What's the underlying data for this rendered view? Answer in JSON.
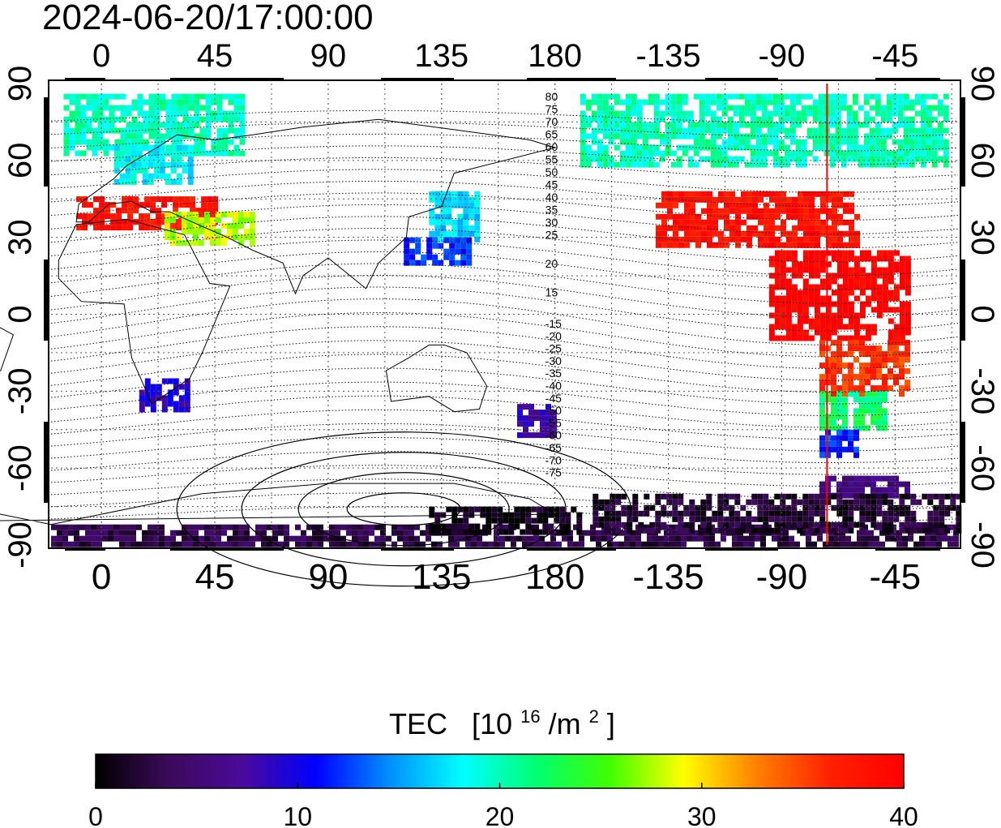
{
  "timestamp": "2024-06-20/17:00:00",
  "axes": {
    "lon_labels_top": [
      "0",
      "45",
      "90",
      "135",
      "180",
      "-135",
      "-90",
      "-45"
    ],
    "lon_labels_bottom": [
      "0",
      "45",
      "90",
      "135",
      "180",
      "-135",
      "-90",
      "-45"
    ],
    "lat_labels": [
      "90",
      "60",
      "30",
      "0",
      "-30",
      "-60",
      "-90"
    ],
    "lon_range": [
      -20,
      340
    ],
    "lat_range": [
      -90,
      90
    ],
    "grid": true,
    "lon_tick_values": [
      0,
      45,
      90,
      135,
      180,
      225,
      270,
      315
    ],
    "lat_tick_values": [
      90,
      60,
      30,
      0,
      -30,
      -60,
      -90
    ]
  },
  "contour_labels_north": [
    "80",
    "75",
    "70",
    "65",
    "60",
    "55",
    "50",
    "45",
    "40",
    "35",
    "30",
    "25",
    "20",
    "15"
  ],
  "contour_labels_south": [
    "-15",
    "-20",
    "-25",
    "-30",
    "-35",
    "-40",
    "-45",
    "-50",
    "-55",
    "-60",
    "-65",
    "-70",
    "-75"
  ],
  "marker_line": {
    "lon": 288,
    "color": "#ff0000"
  },
  "colorbar": {
    "title": "TEC",
    "unit_base": "[10",
    "unit_exp": "16",
    "unit_mid": "/m",
    "unit_exp2": "2",
    "unit_end": "]",
    "tick_labels": [
      "0",
      "10",
      "20",
      "30",
      "40"
    ],
    "min": 0,
    "max": 40,
    "stops": [
      "#000000",
      "#3c0a5a",
      "#4a0a9a",
      "#0000ff",
      "#0090ff",
      "#00ffff",
      "#00ff70",
      "#40ff00",
      "#ffff00",
      "#ff8000",
      "#ff2000",
      "#ff0000"
    ]
  },
  "tec_regions": [
    {
      "lon_min": -15,
      "lon_max": 55,
      "lat_min": 62,
      "lat_max": 86,
      "tec": 20
    },
    {
      "lon_min": 5,
      "lon_max": 35,
      "lat_min": 52,
      "lat_max": 66,
      "tec": 18
    },
    {
      "lon_min": -10,
      "lon_max": 45,
      "lat_min": 34,
      "lat_max": 46,
      "tec": 38
    },
    {
      "lon_min": 25,
      "lon_max": 60,
      "lat_min": 28,
      "lat_max": 40,
      "tec": 28
    },
    {
      "lon_min": 130,
      "lon_max": 150,
      "lat_min": 30,
      "lat_max": 48,
      "tec": 17
    },
    {
      "lon_min": 120,
      "lon_max": 145,
      "lat_min": 20,
      "lat_max": 30,
      "tec": 12
    },
    {
      "lon_min": 15,
      "lon_max": 35,
      "lat_min": -38,
      "lat_max": -25,
      "tec": 9
    },
    {
      "lon_min": 165,
      "lon_max": 180,
      "lat_min": -48,
      "lat_max": -35,
      "tec": 8
    },
    {
      "lon_min": 190,
      "lon_max": 335,
      "lat_min": 58,
      "lat_max": 86,
      "tec": 20
    },
    {
      "lon_min": 220,
      "lon_max": 300,
      "lat_min": 28,
      "lat_max": 48,
      "tec": 38
    },
    {
      "lon_min": 265,
      "lon_max": 320,
      "lat_min": -10,
      "lat_max": 25,
      "tec": 40
    },
    {
      "lon_min": 285,
      "lon_max": 320,
      "lat_min": -30,
      "lat_max": -10,
      "tec": 36
    },
    {
      "lon_min": 285,
      "lon_max": 310,
      "lat_min": -45,
      "lat_max": -30,
      "tec": 22
    },
    {
      "lon_min": 285,
      "lon_max": 300,
      "lat_min": -55,
      "lat_max": -45,
      "tec": 12
    },
    {
      "lon_min": 285,
      "lon_max": 320,
      "lat_min": -70,
      "lat_max": -63,
      "tec": 6
    },
    {
      "lon_min": -20,
      "lon_max": 340,
      "lat_min": -90,
      "lat_max": -82,
      "tec": 3
    },
    {
      "lon_min": 195,
      "lon_max": 340,
      "lat_min": -85,
      "lat_max": -70,
      "tec": 2
    },
    {
      "lon_min": 130,
      "lon_max": 190,
      "lat_min": -84,
      "lat_max": -75,
      "tec": 1
    }
  ]
}
